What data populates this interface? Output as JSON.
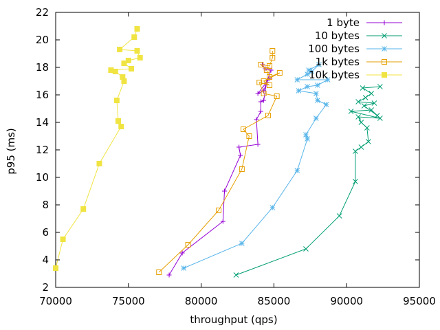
{
  "chart_data": {
    "type": "line",
    "xlabel": "throughput (qps)",
    "ylabel": "p95 (ms)",
    "xlim": [
      70000,
      95000
    ],
    "ylim": [
      2,
      22
    ],
    "xticks": [
      70000,
      75000,
      80000,
      85000,
      90000,
      95000
    ],
    "yticks": [
      2,
      4,
      6,
      8,
      10,
      12,
      14,
      16,
      18,
      20,
      22
    ],
    "grid": false,
    "legend_position": "top-right",
    "series": [
      {
        "name": "1 byte",
        "color": "#9400d3",
        "marker": "plus",
        "points": [
          [
            77800,
            2.9
          ],
          [
            78700,
            4.5
          ],
          [
            81500,
            6.8
          ],
          [
            81600,
            9.0
          ],
          [
            82700,
            11.6
          ],
          [
            82600,
            12.2
          ],
          [
            83900,
            12.4
          ],
          [
            83800,
            14.2
          ],
          [
            84100,
            14.8
          ],
          [
            84100,
            15.5
          ],
          [
            84300,
            15.6
          ],
          [
            84500,
            16.9
          ],
          [
            84700,
            17.2
          ],
          [
            83900,
            16.1
          ],
          [
            84300,
            16.3
          ],
          [
            84800,
            17.8
          ],
          [
            84400,
            17.9
          ],
          [
            84200,
            18.2
          ]
        ]
      },
      {
        "name": "10 bytes",
        "color": "#009e73",
        "marker": "x",
        "points": [
          [
            82400,
            2.9
          ],
          [
            87200,
            4.8
          ],
          [
            89500,
            7.2
          ],
          [
            90600,
            9.7
          ],
          [
            90600,
            11.9
          ],
          [
            91000,
            12.2
          ],
          [
            91500,
            12.6
          ],
          [
            91400,
            13.6
          ],
          [
            91000,
            14.0
          ],
          [
            90800,
            14.4
          ],
          [
            92300,
            14.3
          ],
          [
            90300,
            14.8
          ],
          [
            91700,
            14.9
          ],
          [
            92100,
            14.5
          ],
          [
            91200,
            15.2
          ],
          [
            91900,
            15.4
          ],
          [
            90800,
            15.5
          ],
          [
            91300,
            15.8
          ],
          [
            91700,
            16.1
          ],
          [
            91100,
            16.5
          ],
          [
            92300,
            16.6
          ]
        ]
      },
      {
        "name": "100 bytes",
        "color": "#56b4e9",
        "marker": "star",
        "points": [
          [
            78800,
            3.4
          ],
          [
            82800,
            5.2
          ],
          [
            84900,
            7.8
          ],
          [
            86600,
            10.5
          ],
          [
            87300,
            12.8
          ],
          [
            87200,
            13.1
          ],
          [
            87900,
            14.3
          ],
          [
            88600,
            15.3
          ],
          [
            88000,
            15.6
          ],
          [
            87900,
            16.1
          ],
          [
            86700,
            16.3
          ],
          [
            87300,
            16.6
          ],
          [
            88000,
            16.7
          ],
          [
            88700,
            17.1
          ],
          [
            86600,
            17.1
          ],
          [
            87300,
            17.5
          ],
          [
            87600,
            17.7
          ],
          [
            88100,
            18.2
          ],
          [
            87400,
            17.8
          ]
        ]
      },
      {
        "name": "1k bytes",
        "color": "#e69f00",
        "marker": "square",
        "points": [
          [
            77100,
            3.1
          ],
          [
            79100,
            5.1
          ],
          [
            81200,
            7.6
          ],
          [
            82800,
            10.6
          ],
          [
            83300,
            13.0
          ],
          [
            82900,
            13.5
          ],
          [
            84600,
            14.5
          ],
          [
            85200,
            15.9
          ],
          [
            84300,
            16.1
          ],
          [
            84000,
            16.9
          ],
          [
            84700,
            16.7
          ],
          [
            84300,
            17.0
          ],
          [
            85400,
            17.6
          ],
          [
            84700,
            17.3
          ],
          [
            84500,
            17.8
          ],
          [
            84100,
            18.2
          ],
          [
            84700,
            18.1
          ],
          [
            84900,
            18.7
          ],
          [
            84900,
            19.2
          ]
        ]
      },
      {
        "name": "10k bytes",
        "color": "#f0e442",
        "marker": "filled-square",
        "points": [
          [
            70000,
            3.4
          ],
          [
            70500,
            5.5
          ],
          [
            71900,
            7.7
          ],
          [
            73000,
            11.0
          ],
          [
            74500,
            13.7
          ],
          [
            74300,
            14.1
          ],
          [
            74200,
            15.6
          ],
          [
            74700,
            17.0
          ],
          [
            74600,
            17.3
          ],
          [
            74100,
            17.7
          ],
          [
            73800,
            17.8
          ],
          [
            75200,
            17.9
          ],
          [
            74700,
            18.3
          ],
          [
            75000,
            18.5
          ],
          [
            75800,
            18.7
          ],
          [
            75600,
            19.2
          ],
          [
            74400,
            19.3
          ],
          [
            75400,
            20.2
          ],
          [
            75600,
            20.8
          ]
        ]
      }
    ]
  }
}
